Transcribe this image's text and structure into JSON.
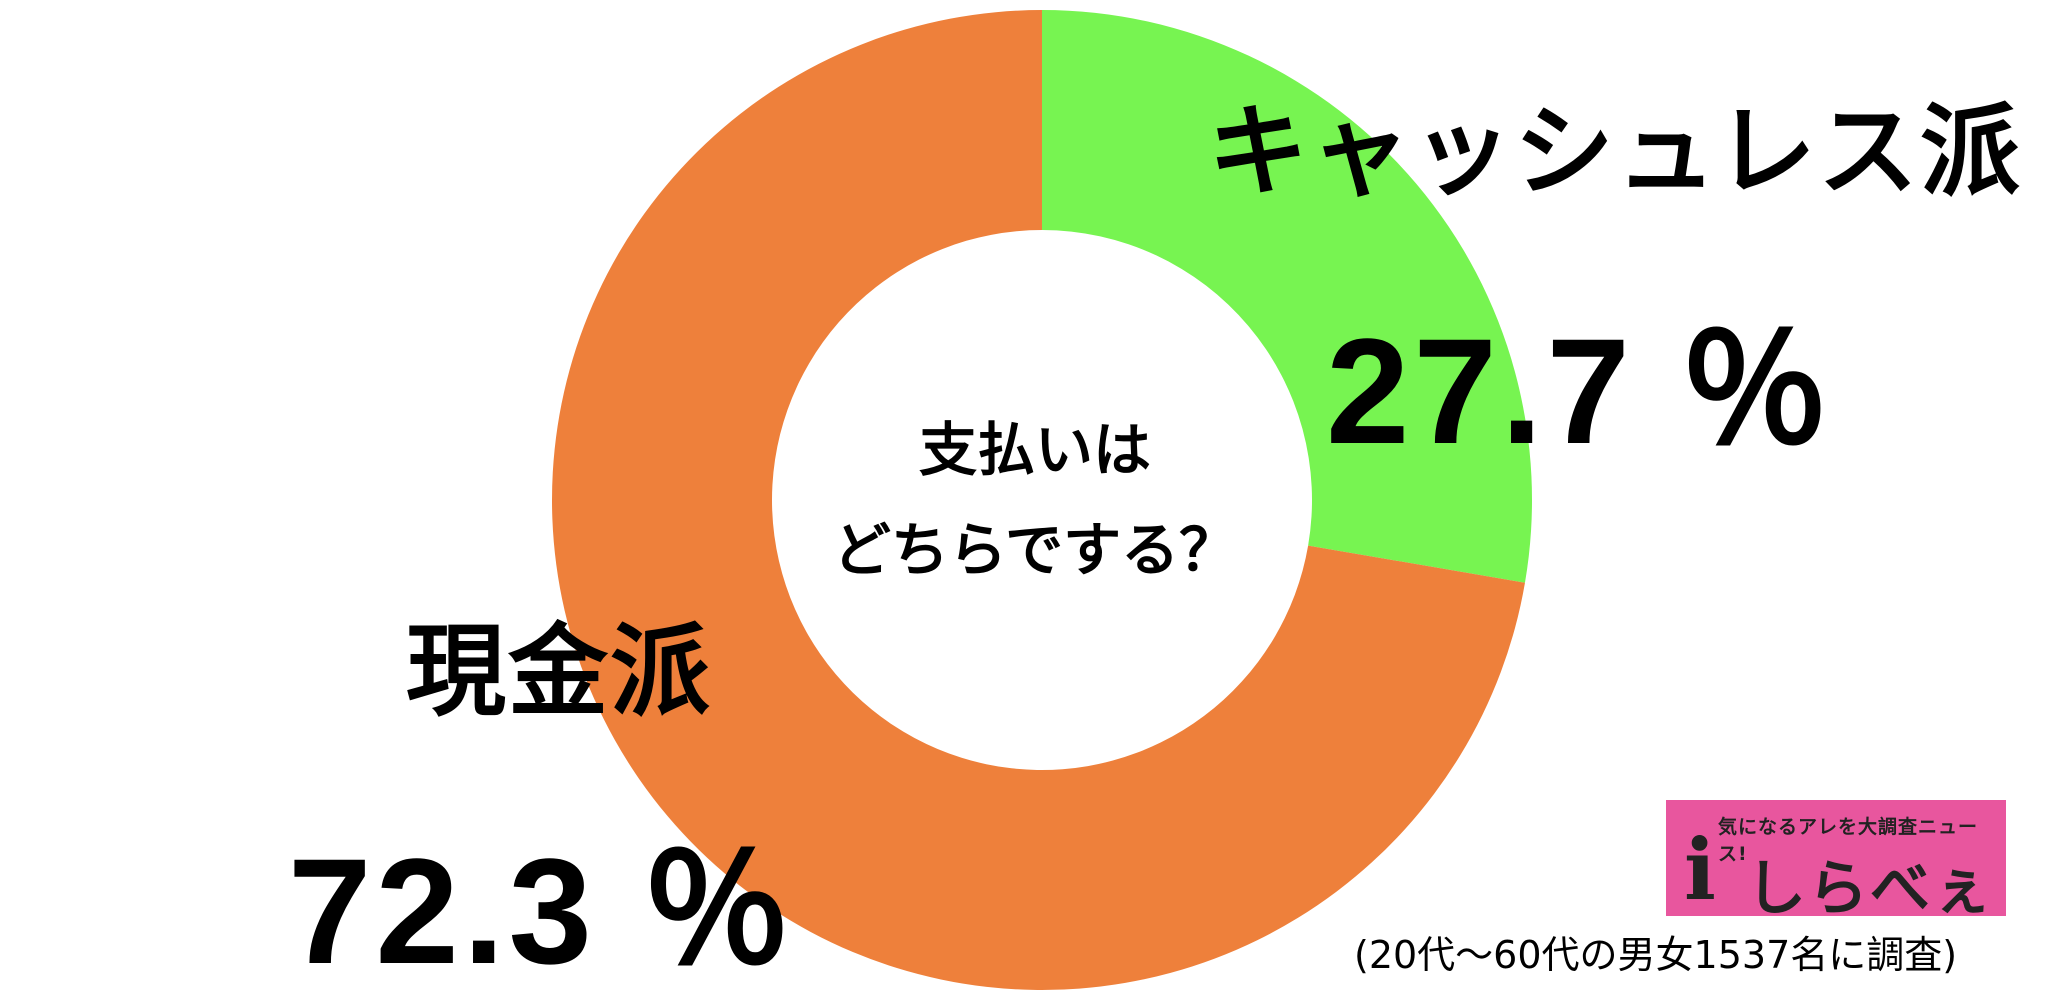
{
  "chart_data": {
    "type": "pie",
    "donut": true,
    "center_text": [
      "支払いは",
      "どちらでする？"
    ],
    "slices": [
      {
        "label": "キャッシュレス派",
        "value": 27.7,
        "value_text": "27.7 ％",
        "color": "#77f451"
      },
      {
        "label": "現金派",
        "value": 72.3,
        "value_text": "72.3 ％",
        "color": "#ee803b"
      }
    ],
    "start_angle": "12 o'clock",
    "direction": "clockwise"
  },
  "logo": {
    "tagline": "気になるアレを大調査ニュース!",
    "name": "しらべぇ",
    "glyph": "i",
    "color": "#e8569e"
  },
  "footnote": "(20代〜60代の男女1537名に調査)"
}
